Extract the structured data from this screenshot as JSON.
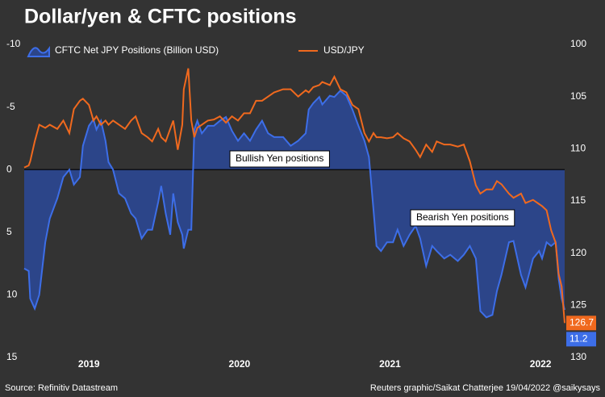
{
  "chart_data": {
    "type": "dual_axis_area_line",
    "title": "Dollar/yen & CFTC positions",
    "source": "Source: Refinitiv Datastream",
    "credit": "Reuters graphic/Saikat Chatterjee 19/04/2022 @saikysays",
    "annotations": [
      "Bullish Yen positions",
      "Bearish Yen positions"
    ],
    "xlim": [
      2018.57,
      2022.16
    ],
    "xticks": [
      2019,
      2020,
      2021,
      2022
    ],
    "ylim": [
      -10,
      15
    ],
    "yticks": [
      -10,
      -5,
      0,
      5,
      10,
      15
    ],
    "y_inverted": true,
    "y2lim": [
      100,
      130
    ],
    "y2ticks": [
      100,
      105,
      110,
      115,
      120,
      125,
      130
    ],
    "y2_inverted": true,
    "x": [
      2018.57,
      2018.6,
      2018.61,
      2018.64,
      2018.67,
      2018.71,
      2018.74,
      2018.79,
      2018.83,
      2018.87,
      2018.9,
      2018.94,
      2018.96,
      2019.0,
      2019.03,
      2019.05,
      2019.08,
      2019.11,
      2019.13,
      2019.16,
      2019.2,
      2019.24,
      2019.28,
      2019.31,
      2019.35,
      2019.39,
      2019.42,
      2019.46,
      2019.48,
      2019.51,
      2019.54,
      2019.56,
      2019.59,
      2019.62,
      2019.63,
      2019.66,
      2019.68,
      2019.7,
      2019.72,
      2019.75,
      2019.79,
      2019.83,
      2019.87,
      2019.91,
      2019.95,
      2019.99,
      2020.03,
      2020.07,
      2020.11,
      2020.15,
      2020.19,
      2020.23,
      2020.29,
      2020.34,
      2020.39,
      2020.44,
      2020.46,
      2020.49,
      2020.53,
      2020.55,
      2020.6,
      2020.63,
      2020.67,
      2020.71,
      2020.75,
      2020.79,
      2020.83,
      2020.86,
      2020.89,
      2020.91,
      2020.94,
      2020.98,
      2021.02,
      2021.05,
      2021.09,
      2021.13,
      2021.17,
      2021.2,
      2021.24,
      2021.28,
      2021.31,
      2021.36,
      2021.4,
      2021.45,
      2021.49,
      2021.53,
      2021.57,
      2021.6,
      2021.64,
      2021.68,
      2021.71,
      2021.74,
      2021.79,
      2021.82,
      2021.87,
      2021.9,
      2021.95,
      2021.99,
      2022.01,
      2022.04,
      2022.07,
      2022.1,
      2022.12,
      2022.14,
      2022.16
    ],
    "series": [
      {
        "name": "CFTC Net JPY Positions (Billion USD)",
        "color": "#3d6ee8",
        "fill": "#2c4589",
        "kind": "area",
        "axis": "y",
        "last_label": "11.2",
        "values": [
          7.9,
          8.1,
          10.3,
          11.1,
          10,
          5.8,
          3.9,
          2.3,
          0.6,
          0,
          1.2,
          0.6,
          -1.9,
          -3.5,
          -4,
          -3.2,
          -3.9,
          -2.3,
          -0.6,
          0,
          1.9,
          2.3,
          3.5,
          3.9,
          5.5,
          4.8,
          4.8,
          2.6,
          1.3,
          3.5,
          5.2,
          1.9,
          4.2,
          5.2,
          6.3,
          4.8,
          4.8,
          -3.2,
          -3.9,
          -2.9,
          -3.5,
          -3.5,
          -3.9,
          -4.2,
          -3.1,
          -2.3,
          -2.9,
          -2.3,
          -3.2,
          -3.9,
          -2.9,
          -2.6,
          -2.6,
          -1.9,
          -2.3,
          -2.9,
          -4.8,
          -5.3,
          -5.8,
          -5.2,
          -5.9,
          -5.8,
          -6.3,
          -5.9,
          -4.8,
          -3.5,
          -2.3,
          -1,
          3.2,
          6.1,
          6.5,
          5.8,
          5.8,
          4.8,
          6.1,
          5.2,
          4.5,
          5.5,
          7.7,
          6.1,
          6.5,
          7.1,
          6.8,
          7.3,
          6.8,
          6.1,
          7.1,
          11.3,
          11.8,
          11.6,
          9.7,
          8.4,
          5.8,
          5.7,
          8.4,
          9.4,
          7.1,
          6.5,
          7.1,
          5.8,
          6.1,
          5.8,
          8.7,
          10.3,
          11.2
        ]
      },
      {
        "name": "USD/JPY",
        "color": "#f0691e",
        "kind": "line",
        "axis": "y2",
        "last_label": "126.7",
        "values": [
          111.8,
          111.6,
          111.2,
          109.3,
          107.7,
          108,
          107.7,
          108.1,
          107.3,
          108.5,
          106.2,
          105.4,
          105.2,
          105.8,
          107.3,
          106.9,
          107.7,
          107.3,
          107.7,
          107.3,
          107.7,
          108.1,
          107.3,
          106.9,
          108.5,
          108.9,
          109.3,
          108.1,
          108.9,
          109.3,
          108.1,
          107.3,
          110.1,
          107.7,
          104.3,
          102.3,
          107.3,
          108.9,
          108,
          107.7,
          107.3,
          107.2,
          106.9,
          107.5,
          106.9,
          107.3,
          106.6,
          106.6,
          105.4,
          105.4,
          105,
          104.6,
          104.3,
          104.3,
          105,
          104.4,
          104.6,
          104.1,
          103.9,
          103.6,
          103.9,
          103.1,
          104.3,
          104.6,
          105.8,
          106.2,
          108.5,
          109.3,
          108.5,
          108.9,
          108.9,
          109,
          108.9,
          108.5,
          109,
          109.3,
          110.1,
          110.8,
          109.6,
          110.3,
          109.3,
          109.6,
          109.6,
          109.8,
          109.6,
          111.2,
          113.5,
          114.3,
          113.9,
          113.9,
          113.1,
          113.4,
          114.3,
          114.7,
          114.3,
          115.2,
          114.9,
          115.3,
          115.5,
          115.9,
          117.8,
          119,
          122,
          123.2,
          126.7
        ]
      }
    ]
  }
}
